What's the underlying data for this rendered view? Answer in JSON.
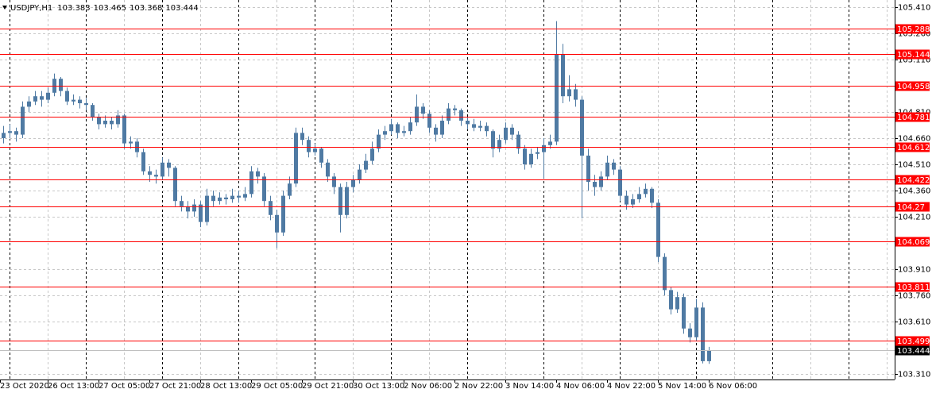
{
  "chart_data": {
    "type": "candlestick",
    "title": "USDJPY,H1",
    "color": "#4f7aa3",
    "level_color": "#ff0000",
    "grid": true,
    "xlim": [
      -0.5,
      140.25
    ],
    "ylim": [
      103.278,
      105.451
    ],
    "xticks": [
      {
        "value": -0.5,
        "label": "23 Oct 2020"
      },
      {
        "value": 7,
        "label": "26 Oct 13:00"
      },
      {
        "value": 15,
        "label": "27 Oct 05:00"
      },
      {
        "value": 23,
        "label": "27 Oct 21:00"
      },
      {
        "value": 31,
        "label": "28 Oct 13:00"
      },
      {
        "value": 39,
        "label": "29 Oct 05:00"
      },
      {
        "value": 47,
        "label": "29 Oct 21:00"
      },
      {
        "value": 55,
        "label": "30 Oct 13:00"
      },
      {
        "value": 63,
        "label": "2 Nov 06:00"
      },
      {
        "value": 71,
        "label": "2 Nov 22:00"
      },
      {
        "value": 79,
        "label": "3 Nov 14:00"
      },
      {
        "value": 87,
        "label": "4 Nov 06:00"
      },
      {
        "value": 95,
        "label": "4 Nov 22:00"
      },
      {
        "value": 103,
        "label": "5 Nov 14:00"
      },
      {
        "value": 111,
        "label": "6 Nov 06:00"
      }
    ],
    "yticks": [
      {
        "value": 105.41,
        "label": "105.410"
      },
      {
        "value": 105.26,
        "label": "105.260"
      },
      {
        "value": 105.11,
        "label": "105.110"
      },
      {
        "value": 104.81,
        "label": "104.810"
      },
      {
        "value": 104.66,
        "label": "104.660"
      },
      {
        "value": 104.51,
        "label": "104.510"
      },
      {
        "value": 104.36,
        "label": "104.360"
      },
      {
        "value": 104.21,
        "label": "104.210"
      },
      {
        "value": 103.91,
        "label": "103.910"
      },
      {
        "value": 103.76,
        "label": "103.760"
      },
      {
        "value": 103.61,
        "label": "103.610"
      },
      {
        "value": 103.31,
        "label": "103.310"
      }
    ],
    "levels": [
      105.288,
      105.144,
      104.958,
      104.781,
      104.612,
      104.422,
      104.27,
      104.069,
      103.811,
      103.499
    ],
    "ohlc": [
      [
        104.66,
        104.73,
        104.63,
        104.69
      ],
      [
        104.69,
        104.74,
        104.66,
        104.7
      ],
      [
        104.7,
        104.72,
        104.64,
        104.68
      ],
      [
        104.68,
        104.87,
        104.66,
        104.84
      ],
      [
        104.84,
        104.9,
        104.81,
        104.87
      ],
      [
        104.87,
        104.93,
        104.85,
        104.9
      ],
      [
        104.9,
        104.93,
        104.84,
        104.88
      ],
      [
        104.88,
        104.95,
        104.86,
        104.92
      ],
      [
        104.92,
        105.03,
        104.9,
        105.0
      ],
      [
        105.0,
        105.01,
        104.9,
        104.93
      ],
      [
        104.93,
        104.95,
        104.85,
        104.87
      ],
      [
        104.87,
        104.91,
        104.85,
        104.88
      ],
      [
        104.88,
        104.9,
        104.83,
        104.86
      ],
      [
        104.86,
        104.89,
        104.82,
        104.85
      ],
      [
        104.85,
        104.86,
        104.76,
        104.78
      ],
      [
        104.78,
        104.8,
        104.71,
        104.74
      ],
      [
        104.74,
        104.79,
        104.72,
        104.76
      ],
      [
        104.76,
        104.78,
        104.71,
        104.74
      ],
      [
        104.74,
        104.82,
        104.72,
        104.79
      ],
      [
        104.79,
        104.8,
        104.6,
        104.63
      ],
      [
        104.63,
        104.67,
        104.6,
        104.64
      ],
      [
        104.64,
        104.66,
        104.55,
        104.58
      ],
      [
        104.58,
        104.6,
        104.45,
        104.47
      ],
      [
        104.47,
        104.5,
        104.41,
        104.45
      ],
      [
        104.45,
        104.48,
        104.4,
        104.44
      ],
      [
        104.44,
        104.55,
        104.42,
        104.52
      ],
      [
        104.52,
        104.54,
        104.44,
        104.49
      ],
      [
        104.49,
        104.5,
        104.27,
        104.3
      ],
      [
        104.3,
        104.33,
        104.24,
        104.27
      ],
      [
        104.27,
        104.3,
        104.2,
        104.24
      ],
      [
        104.24,
        104.31,
        104.21,
        104.28
      ],
      [
        104.28,
        104.3,
        104.15,
        104.18
      ],
      [
        104.18,
        104.37,
        104.16,
        104.33
      ],
      [
        104.33,
        104.36,
        104.27,
        104.3
      ],
      [
        104.3,
        104.35,
        104.28,
        104.32
      ],
      [
        104.32,
        104.34,
        104.28,
        104.31
      ],
      [
        104.31,
        104.37,
        104.29,
        104.33
      ],
      [
        104.33,
        104.36,
        104.29,
        104.32
      ],
      [
        104.32,
        104.38,
        104.3,
        104.34
      ],
      [
        104.34,
        104.5,
        104.32,
        104.47
      ],
      [
        104.47,
        104.49,
        104.4,
        104.44
      ],
      [
        104.44,
        104.46,
        104.27,
        104.3
      ],
      [
        104.3,
        104.33,
        104.19,
        104.22
      ],
      [
        104.22,
        104.25,
        104.03,
        104.12
      ],
      [
        104.12,
        104.36,
        104.1,
        104.33
      ],
      [
        104.33,
        104.44,
        104.31,
        104.4
      ],
      [
        104.4,
        104.72,
        104.38,
        104.69
      ],
      [
        104.69,
        104.72,
        104.62,
        104.65
      ],
      [
        104.65,
        104.67,
        104.55,
        104.58
      ],
      [
        104.58,
        104.63,
        104.56,
        104.6
      ],
      [
        104.6,
        104.61,
        104.49,
        104.52
      ],
      [
        104.52,
        104.54,
        104.41,
        104.44
      ],
      [
        104.44,
        104.46,
        104.34,
        104.38
      ],
      [
        104.38,
        104.4,
        104.12,
        104.22
      ],
      [
        104.22,
        104.41,
        104.2,
        104.38
      ],
      [
        104.38,
        104.45,
        104.35,
        104.42
      ],
      [
        104.42,
        104.51,
        104.4,
        104.48
      ],
      [
        104.48,
        104.57,
        104.46,
        104.53
      ],
      [
        104.53,
        104.64,
        104.51,
        104.6
      ],
      [
        104.6,
        104.71,
        104.58,
        104.68
      ],
      [
        104.68,
        104.73,
        104.65,
        104.7
      ],
      [
        104.7,
        104.77,
        104.68,
        104.74
      ],
      [
        104.74,
        104.75,
        104.66,
        104.69
      ],
      [
        104.69,
        104.73,
        104.67,
        104.7
      ],
      [
        104.7,
        104.78,
        104.68,
        104.75
      ],
      [
        104.75,
        104.91,
        104.73,
        104.84
      ],
      [
        104.84,
        104.86,
        104.77,
        104.8
      ],
      [
        104.8,
        104.82,
        104.69,
        104.72
      ],
      [
        104.72,
        104.74,
        104.64,
        104.68
      ],
      [
        104.68,
        104.79,
        104.66,
        104.76
      ],
      [
        104.76,
        104.86,
        104.74,
        104.83
      ],
      [
        104.83,
        104.85,
        104.79,
        104.82
      ],
      [
        104.82,
        104.83,
        104.73,
        104.76
      ],
      [
        104.76,
        104.78,
        104.71,
        104.74
      ],
      [
        104.74,
        104.77,
        104.7,
        104.72
      ],
      [
        104.72,
        104.76,
        104.7,
        104.73
      ],
      [
        104.73,
        104.75,
        104.67,
        104.7
      ],
      [
        104.7,
        104.71,
        104.55,
        104.6
      ],
      [
        104.6,
        104.68,
        104.58,
        104.65
      ],
      [
        104.65,
        104.75,
        104.63,
        104.72
      ],
      [
        104.72,
        104.74,
        104.65,
        104.68
      ],
      [
        104.68,
        104.7,
        104.57,
        104.6
      ],
      [
        104.6,
        104.62,
        104.48,
        104.51
      ],
      [
        104.51,
        104.6,
        104.49,
        104.57
      ],
      [
        104.57,
        104.61,
        104.54,
        104.58
      ],
      [
        104.58,
        104.66,
        104.43,
        104.62
      ],
      [
        104.62,
        104.68,
        104.6,
        104.64
      ],
      [
        104.64,
        105.33,
        104.62,
        105.14
      ],
      [
        105.14,
        105.2,
        104.86,
        104.9
      ],
      [
        104.9,
        105.02,
        104.87,
        104.94
      ],
      [
        104.94,
        104.97,
        104.84,
        104.88
      ],
      [
        104.88,
        104.9,
        104.2,
        104.56
      ],
      [
        104.56,
        104.6,
        104.36,
        104.41
      ],
      [
        104.41,
        104.45,
        104.33,
        104.38
      ],
      [
        104.38,
        104.47,
        104.36,
        104.44
      ],
      [
        104.44,
        104.56,
        104.42,
        104.52
      ],
      [
        104.52,
        104.54,
        104.45,
        104.48
      ],
      [
        104.48,
        104.5,
        104.3,
        104.33
      ],
      [
        104.33,
        104.36,
        104.25,
        104.28
      ],
      [
        104.28,
        104.34,
        104.26,
        104.31
      ],
      [
        104.31,
        104.38,
        104.29,
        104.34
      ],
      [
        104.34,
        104.4,
        104.32,
        104.37
      ],
      [
        104.37,
        104.38,
        104.26,
        104.29
      ],
      [
        104.29,
        104.31,
        103.95,
        103.98
      ],
      [
        103.98,
        104.0,
        103.76,
        103.79
      ],
      [
        103.79,
        103.81,
        103.65,
        103.68
      ],
      [
        103.68,
        103.78,
        103.66,
        103.75
      ],
      [
        103.75,
        103.77,
        103.54,
        103.57
      ],
      [
        103.57,
        103.6,
        103.49,
        103.52
      ],
      [
        103.52,
        103.74,
        103.5,
        103.69
      ],
      [
        103.69,
        103.72,
        103.37,
        103.383
      ],
      [
        103.383,
        103.465,
        103.368,
        103.444
      ]
    ]
  }
}
